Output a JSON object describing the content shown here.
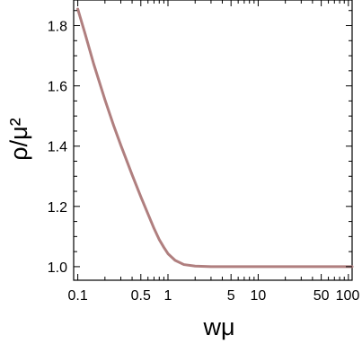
{
  "chart_data": {
    "type": "line",
    "xlabel": "wμ",
    "ylabel": "ρ/μ²",
    "xscale": "log",
    "xlim": [
      0.09,
      110
    ],
    "ylim": [
      0.955,
      1.885
    ],
    "x_ticks": [
      {
        "value": 0.1,
        "label": "0.1"
      },
      {
        "value": 0.5,
        "label": "0.5"
      },
      {
        "value": 1,
        "label": "1"
      },
      {
        "value": 5,
        "label": "5"
      },
      {
        "value": 10,
        "label": "10"
      },
      {
        "value": 50,
        "label": "50"
      },
      {
        "value": 100,
        "label": "100"
      }
    ],
    "y_ticks": [
      {
        "value": 1.0,
        "label": "1.0"
      },
      {
        "value": 1.2,
        "label": "1.2"
      },
      {
        "value": 1.4,
        "label": "1.4"
      },
      {
        "value": 1.6,
        "label": "1.6"
      },
      {
        "value": 1.8,
        "label": "1.8"
      }
    ],
    "grid": false,
    "series": [
      {
        "color": "#b07f7f",
        "x": [
          0.1,
          0.12,
          0.15,
          0.2,
          0.25,
          0.3,
          0.4,
          0.5,
          0.6,
          0.7,
          0.8,
          0.9,
          1.0,
          1.2,
          1.5,
          2,
          3,
          5,
          10,
          20,
          50,
          100,
          110
        ],
        "y": [
          1.855,
          1.775,
          1.673,
          1.554,
          1.468,
          1.403,
          1.305,
          1.232,
          1.175,
          1.127,
          1.09,
          1.064,
          1.043,
          1.021,
          1.007,
          1.002,
          1.0,
          1.0,
          1.0,
          1.0,
          1.0,
          1.0,
          1.0
        ]
      }
    ]
  }
}
